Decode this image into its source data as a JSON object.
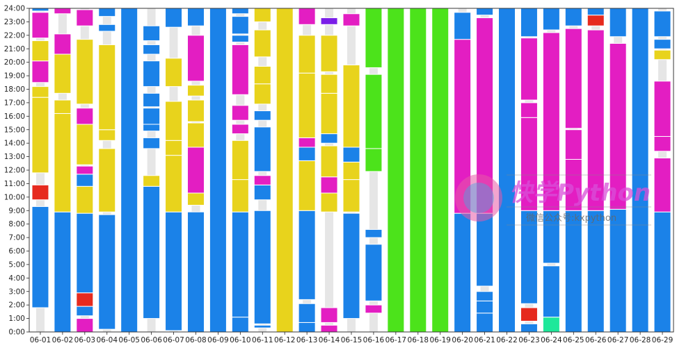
{
  "chart_data": {
    "type": "timeline",
    "title": "",
    "xlabel": "",
    "ylabel": "",
    "ylim": [
      0,
      24
    ],
    "y_ticks": [
      "0:00",
      "1:00",
      "2:00",
      "3:00",
      "4:00",
      "5:00",
      "6:00",
      "7:00",
      "8:00",
      "9:00",
      "10:00",
      "11:00",
      "12:00",
      "13:00",
      "14:00",
      "15:00",
      "16:00",
      "17:00",
      "18:00",
      "19:00",
      "20:00",
      "21:00",
      "22:00",
      "23:00",
      "24:00"
    ],
    "categories": [
      "06-01",
      "06-02",
      "06-03",
      "06-04",
      "06-05",
      "06-06",
      "06-07",
      "06-08",
      "06-09",
      "06-10",
      "06-11",
      "06-12",
      "06-13",
      "06-14",
      "06-15",
      "06-16",
      "06-17",
      "06-18",
      "06-19",
      "06-20",
      "06-21",
      "06-22",
      "06-23",
      "06-24",
      "06-25",
      "06-26",
      "06-27",
      "06-28",
      "06-29"
    ],
    "colors": {
      "blue": "#1b82e8",
      "yellow": "#e8d31c",
      "magenta": "#e31ec2",
      "green": "#4ce31b",
      "red": "#e62a1e",
      "purple": "#7a1ee8",
      "teal": "#1ee89a",
      "background": "#e6e6e6"
    },
    "days": [
      [
        [
          1.8,
          9.3,
          "blue"
        ],
        [
          9.8,
          10.9,
          "red"
        ],
        [
          11.8,
          17.4,
          "yellow"
        ],
        [
          17.4,
          18.2,
          "yellow"
        ],
        [
          18.5,
          20.1,
          "magenta"
        ],
        [
          20.1,
          21.6,
          "yellow"
        ],
        [
          21.8,
          23.7,
          "magenta"
        ],
        [
          23.8,
          24,
          "blue"
        ]
      ],
      [
        [
          0,
          8.9,
          "blue"
        ],
        [
          8.9,
          16.2,
          "yellow"
        ],
        [
          16.2,
          17.2,
          "yellow"
        ],
        [
          17.7,
          20.6,
          "yellow"
        ],
        [
          20.6,
          22.1,
          "magenta"
        ],
        [
          23.6,
          24,
          "magenta"
        ]
      ],
      [
        [
          0,
          1.0,
          "magenta"
        ],
        [
          1.2,
          1.9,
          "blue"
        ],
        [
          1.9,
          2.9,
          "red"
        ],
        [
          2.9,
          8.8,
          "blue"
        ],
        [
          8.8,
          10.8,
          "yellow"
        ],
        [
          10.8,
          11.7,
          "blue"
        ],
        [
          11.7,
          12.3,
          "magenta"
        ],
        [
          12.4,
          15.4,
          "yellow"
        ],
        [
          15.4,
          16.6,
          "magenta"
        ],
        [
          16.9,
          21.7,
          "yellow"
        ],
        [
          22.7,
          23.9,
          "magenta"
        ]
      ],
      [
        [
          0.2,
          8.7,
          "blue"
        ],
        [
          8.9,
          13.6,
          "yellow"
        ],
        [
          14.2,
          15.0,
          "yellow"
        ],
        [
          15.0,
          21.3,
          "yellow"
        ],
        [
          22.3,
          22.8,
          "blue"
        ],
        [
          23.4,
          24,
          "blue"
        ]
      ],
      [
        [
          0,
          24,
          "blue"
        ]
      ],
      [
        [
          1.0,
          10.8,
          "blue"
        ],
        [
          10.8,
          11.6,
          "yellow"
        ],
        [
          13.6,
          14.4,
          "blue"
        ],
        [
          14.9,
          15.4,
          "blue"
        ],
        [
          15.4,
          16.6,
          "blue"
        ],
        [
          16.7,
          17.7,
          "blue"
        ],
        [
          18.2,
          20.1,
          "blue"
        ],
        [
          20.6,
          21.3,
          "blue"
        ],
        [
          21.6,
          22.7,
          "blue"
        ]
      ],
      [
        [
          0.1,
          8.9,
          "blue"
        ],
        [
          8.9,
          13.1,
          "yellow"
        ],
        [
          13.1,
          14.2,
          "yellow"
        ],
        [
          14.2,
          17.1,
          "yellow"
        ],
        [
          18.2,
          20.3,
          "yellow"
        ],
        [
          22.6,
          24,
          "blue"
        ]
      ],
      [
        [
          0,
          8.9,
          "blue"
        ],
        [
          9.4,
          10.3,
          "yellow"
        ],
        [
          10.3,
          13.7,
          "magenta"
        ],
        [
          13.7,
          15.5,
          "yellow"
        ],
        [
          15.6,
          17.2,
          "yellow"
        ],
        [
          17.5,
          18.3,
          "yellow"
        ],
        [
          18.6,
          22.0,
          "magenta"
        ],
        [
          22.7,
          24,
          "blue"
        ]
      ],
      [
        [
          0,
          24,
          "blue"
        ]
      ],
      [
        [
          0,
          1.1,
          "blue"
        ],
        [
          1.1,
          8.9,
          "blue"
        ],
        [
          8.9,
          11.3,
          "yellow"
        ],
        [
          11.3,
          14.2,
          "yellow"
        ],
        [
          14.7,
          15.4,
          "magenta"
        ],
        [
          15.7,
          16.8,
          "magenta"
        ],
        [
          17.6,
          21.3,
          "magenta"
        ],
        [
          21.5,
          22.0,
          "blue"
        ],
        [
          22.1,
          23.4,
          "blue"
        ],
        [
          23.6,
          24,
          "blue"
        ]
      ],
      [
        [
          0.3,
          0.5,
          "blue"
        ],
        [
          0.6,
          9.0,
          "blue"
        ],
        [
          9.8,
          10.9,
          "blue"
        ],
        [
          10.9,
          11.6,
          "magenta"
        ],
        [
          11.9,
          15.2,
          "blue"
        ],
        [
          15.7,
          16.4,
          "blue"
        ],
        [
          16.9,
          18.4,
          "yellow"
        ],
        [
          18.4,
          19.7,
          "yellow"
        ],
        [
          20.4,
          22.4,
          "yellow"
        ],
        [
          23.0,
          24,
          "yellow"
        ]
      ],
      [
        [
          0,
          24,
          "yellow"
        ]
      ],
      [
        [
          0,
          0.7,
          "blue"
        ],
        [
          0.7,
          2.1,
          "blue"
        ],
        [
          2.4,
          9.0,
          "blue"
        ],
        [
          9.0,
          12.7,
          "yellow"
        ],
        [
          12.7,
          13.7,
          "blue"
        ],
        [
          13.7,
          14.4,
          "magenta"
        ],
        [
          14.4,
          19.2,
          "yellow"
        ],
        [
          19.2,
          22.0,
          "yellow"
        ],
        [
          22.8,
          24,
          "magenta"
        ]
      ],
      [
        [
          0,
          0.5,
          "magenta"
        ],
        [
          0.7,
          1.8,
          "magenta"
        ],
        [
          8.9,
          10.3,
          "yellow"
        ],
        [
          10.3,
          11.5,
          "magenta"
        ],
        [
          11.5,
          13.8,
          "yellow"
        ],
        [
          14.0,
          14.7,
          "blue"
        ],
        [
          14.7,
          17.7,
          "yellow"
        ],
        [
          17.7,
          19.1,
          "yellow"
        ],
        [
          19.3,
          22.0,
          "yellow"
        ],
        [
          22.8,
          23.3,
          "purple"
        ]
      ],
      [
        [
          1.0,
          8.8,
          "blue"
        ],
        [
          8.9,
          11.3,
          "yellow"
        ],
        [
          11.3,
          12.6,
          "yellow"
        ],
        [
          12.6,
          13.7,
          "blue"
        ],
        [
          13.7,
          19.8,
          "yellow"
        ],
        [
          22.7,
          23.6,
          "magenta"
        ]
      ],
      [
        [
          1.4,
          2.0,
          "magenta"
        ],
        [
          2.3,
          6.5,
          "blue"
        ],
        [
          7.0,
          7.6,
          "blue"
        ],
        [
          11.9,
          13.6,
          "green"
        ],
        [
          13.6,
          19.1,
          "green"
        ],
        [
          19.6,
          24,
          "green"
        ]
      ],
      [
        [
          0,
          24,
          "green"
        ]
      ],
      [
        [
          0,
          24,
          "green"
        ]
      ],
      [
        [
          0,
          24,
          "green"
        ]
      ],
      [
        [
          0,
          8.8,
          "blue"
        ],
        [
          8.8,
          21.7,
          "magenta"
        ],
        [
          21.7,
          23.7,
          "blue"
        ]
      ],
      [
        [
          0,
          1.4,
          "blue"
        ],
        [
          1.4,
          2.3,
          "blue"
        ],
        [
          2.3,
          3.0,
          "blue"
        ],
        [
          3.4,
          8.8,
          "blue"
        ],
        [
          8.8,
          23.3,
          "magenta"
        ],
        [
          23.5,
          24,
          "blue"
        ]
      ],
      [
        [
          0,
          24,
          "blue"
        ]
      ],
      [
        [
          0,
          0.6,
          "blue"
        ],
        [
          0.8,
          1.8,
          "red"
        ],
        [
          2.1,
          9.0,
          "blue"
        ],
        [
          9.0,
          15.9,
          "magenta"
        ],
        [
          15.9,
          17.0,
          "magenta"
        ],
        [
          17.2,
          21.8,
          "magenta"
        ],
        [
          21.9,
          24,
          "blue"
        ]
      ],
      [
        [
          0,
          1.1,
          "teal"
        ],
        [
          1.1,
          4.9,
          "blue"
        ],
        [
          5.1,
          9.0,
          "blue"
        ],
        [
          9.0,
          22.2,
          "magenta"
        ],
        [
          22.4,
          24,
          "blue"
        ]
      ],
      [
        [
          0,
          9.0,
          "blue"
        ],
        [
          9.0,
          12.8,
          "magenta"
        ],
        [
          12.8,
          15.0,
          "magenta"
        ],
        [
          15.1,
          22.5,
          "magenta"
        ],
        [
          22.7,
          24,
          "blue"
        ]
      ],
      [
        [
          0,
          9.0,
          "blue"
        ],
        [
          9.0,
          22.4,
          "magenta"
        ],
        [
          22.7,
          23.5,
          "red"
        ],
        [
          23.5,
          24,
          "blue"
        ]
      ],
      [
        [
          0,
          9.1,
          "blue"
        ],
        [
          9.1,
          21.4,
          "magenta"
        ],
        [
          21.9,
          24,
          "blue"
        ]
      ],
      [
        [
          0,
          24,
          "blue"
        ]
      ],
      [
        [
          0,
          8.9,
          "blue"
        ],
        [
          8.9,
          12.9,
          "magenta"
        ],
        [
          13.4,
          14.5,
          "magenta"
        ],
        [
          14.5,
          18.6,
          "magenta"
        ],
        [
          20.2,
          20.9,
          "yellow"
        ],
        [
          21.0,
          21.7,
          "blue"
        ],
        [
          21.9,
          23.8,
          "blue"
        ]
      ]
    ]
  },
  "watermark": {
    "title": "快学Python",
    "subtitle": "微信公众号:kxpython"
  }
}
